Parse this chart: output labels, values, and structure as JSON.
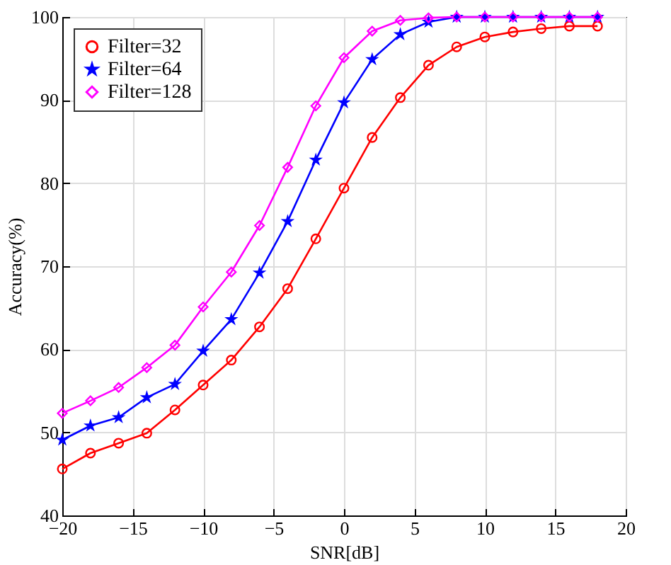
{
  "chart_data": {
    "type": "line",
    "xlabel": "SNR[dB]",
    "ylabel": "Accuracy(%)",
    "x": [
      -20,
      -18,
      -16,
      -14,
      -12,
      -10,
      -8,
      -6,
      -4,
      -2,
      0,
      2,
      4,
      6,
      8,
      10,
      12,
      14,
      16,
      18
    ],
    "series": [
      {
        "name": "Filter=32",
        "color": "#ff0000",
        "marker": "circle",
        "values": [
          45.6,
          47.5,
          48.7,
          49.9,
          52.7,
          55.7,
          58.7,
          62.7,
          67.3,
          73.3,
          79.4,
          85.5,
          90.3,
          94.2,
          96.4,
          97.6,
          98.2,
          98.6,
          98.9,
          98.9
        ]
      },
      {
        "name": "Filter=64",
        "color": "#0000ff",
        "marker": "star",
        "values": [
          49.1,
          50.8,
          51.8,
          54.2,
          55.8,
          59.8,
          63.6,
          69.2,
          75.4,
          82.8,
          89.7,
          94.9,
          97.9,
          99.4,
          100,
          100,
          100,
          100,
          100,
          100
        ]
      },
      {
        "name": "Filter=128",
        "color": "#ff00ff",
        "marker": "diamond",
        "values": [
          52.3,
          53.8,
          55.4,
          57.8,
          60.5,
          65.1,
          69.3,
          74.9,
          81.9,
          89.3,
          95.1,
          98.3,
          99.6,
          99.9,
          100,
          100,
          100,
          100,
          100,
          100
        ]
      }
    ],
    "xlim": [
      -20,
      20
    ],
    "xticks": [
      -20,
      -15,
      -10,
      -5,
      0,
      5,
      10,
      15,
      20
    ],
    "ylim": [
      40,
      100
    ],
    "yticks": [
      40,
      50,
      60,
      70,
      80,
      90,
      100
    ],
    "grid": true,
    "legend": "top left",
    "line_style": "solid"
  }
}
